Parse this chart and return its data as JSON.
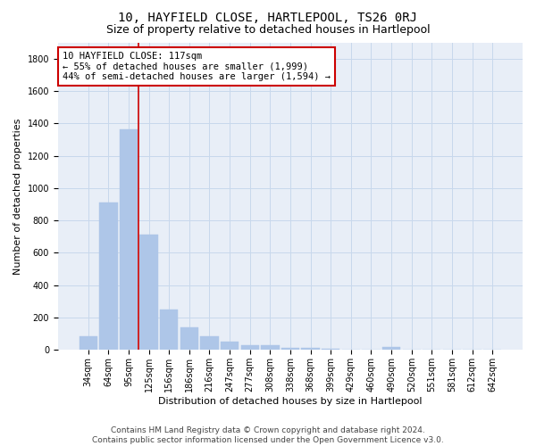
{
  "title": "10, HAYFIELD CLOSE, HARTLEPOOL, TS26 0RJ",
  "subtitle": "Size of property relative to detached houses in Hartlepool",
  "xlabel": "Distribution of detached houses by size in Hartlepool",
  "ylabel": "Number of detached properties",
  "categories": [
    "34sqm",
    "64sqm",
    "95sqm",
    "125sqm",
    "156sqm",
    "186sqm",
    "216sqm",
    "247sqm",
    "277sqm",
    "308sqm",
    "338sqm",
    "368sqm",
    "399sqm",
    "429sqm",
    "460sqm",
    "490sqm",
    "520sqm",
    "551sqm",
    "581sqm",
    "612sqm",
    "642sqm"
  ],
  "values": [
    85,
    910,
    1365,
    710,
    250,
    140,
    85,
    50,
    30,
    30,
    15,
    10,
    5,
    0,
    0,
    20,
    0,
    0,
    0,
    0,
    0
  ],
  "bar_color": "#aec6e8",
  "bar_edge_color": "#aec6e8",
  "grid_color": "#c8d8ec",
  "background_color": "#e8eef7",
  "vline_color": "#cc0000",
  "vline_xindex": 2.5,
  "annotation_text": "10 HAYFIELD CLOSE: 117sqm\n← 55% of detached houses are smaller (1,999)\n44% of semi-detached houses are larger (1,594) →",
  "annotation_box_color": "#ffffff",
  "annotation_box_edge": "#cc0000",
  "ylim": [
    0,
    1900
  ],
  "yticks": [
    0,
    200,
    400,
    600,
    800,
    1000,
    1200,
    1400,
    1600,
    1800
  ],
  "footer": "Contains HM Land Registry data © Crown copyright and database right 2024.\nContains public sector information licensed under the Open Government Licence v3.0.",
  "title_fontsize": 10,
  "subtitle_fontsize": 9,
  "axis_label_fontsize": 8,
  "tick_fontsize": 7,
  "annotation_fontsize": 7.5,
  "footer_fontsize": 6.5
}
